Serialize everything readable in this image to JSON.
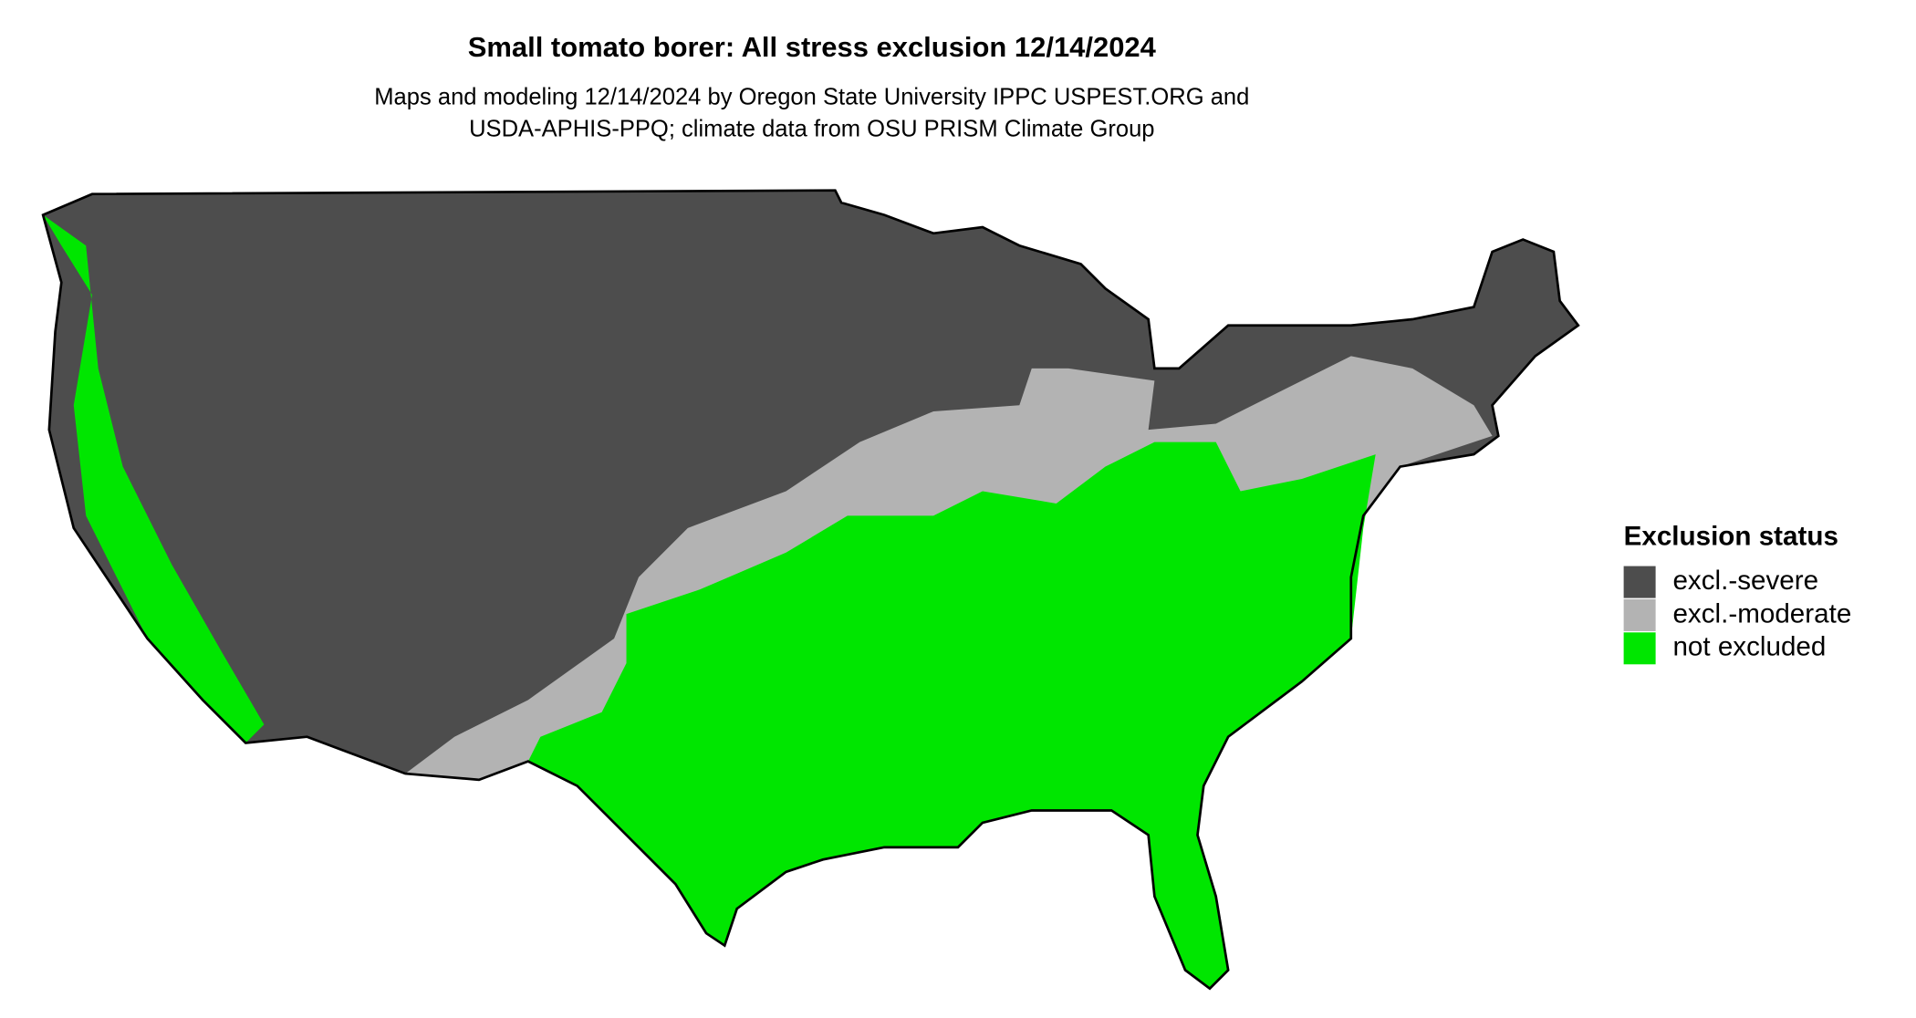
{
  "title": "Small tomato borer: All stress exclusion 12/14/2024",
  "subtitle": [
    "Maps and modeling 12/14/2024 by Oregon State University IPPC USPEST.ORG and",
    "USDA-APHIS-PPQ; climate data from OSU PRISM Climate Group"
  ],
  "legend": {
    "title": "Exclusion status",
    "items": [
      {
        "label": "excl.-severe",
        "color": "#4d4d4d"
      },
      {
        "label": "excl.-moderate",
        "color": "#b3b3b3"
      },
      {
        "label": "not excluded",
        "color": "#00e600"
      }
    ]
  }
}
